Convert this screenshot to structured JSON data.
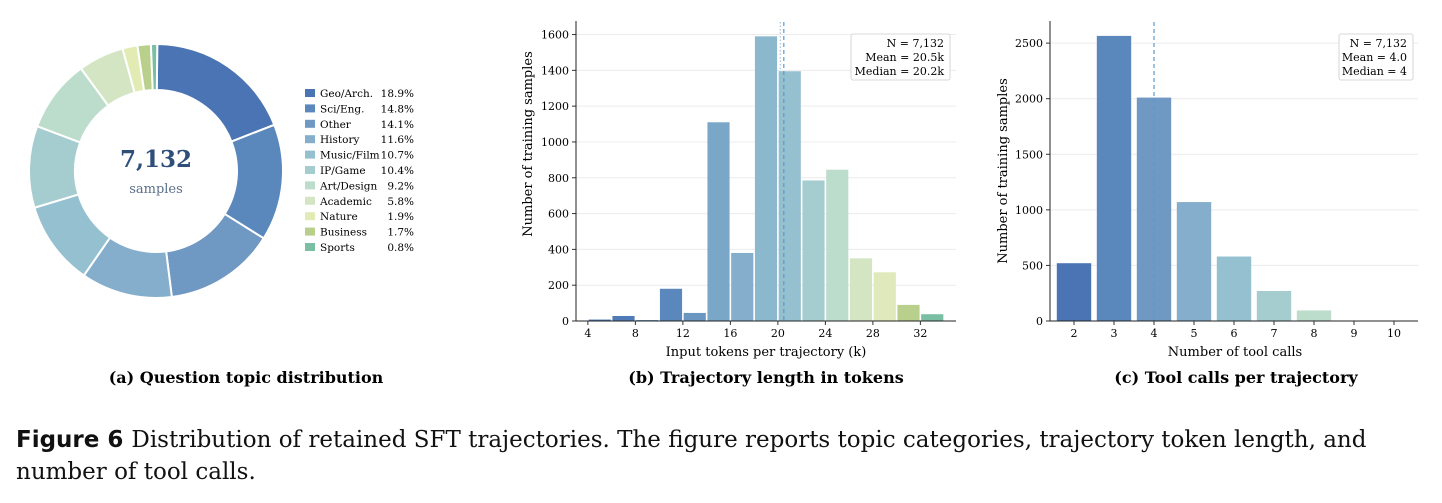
{
  "caption": {
    "label": "Figure 6",
    "text": "Distribution of retained SFT trajectories. The figure reports topic categories, trajectory token length, and number of tool calls."
  },
  "chart_data": [
    {
      "type": "pie",
      "subtitle": "(a) Question topic distribution",
      "center_value": "7,132",
      "center_label": "samples",
      "categories": [
        "Geo/Arch.",
        "Sci/Eng.",
        "Other",
        "History",
        "Music/Film",
        "IP/Game",
        "Art/Design",
        "Academic",
        "Nature",
        "Business",
        "Sports"
      ],
      "percent_labels": [
        "18.9%",
        "14.8%",
        "14.1%",
        "11.6%",
        "10.7%",
        "10.4%",
        "9.2%",
        "5.8%",
        "1.9%",
        "1.7%",
        "0.8%"
      ],
      "values": [
        18.9,
        14.8,
        14.1,
        11.6,
        10.7,
        10.4,
        9.2,
        5.8,
        1.9,
        1.7,
        0.8
      ],
      "colors": [
        "#4a74b4",
        "#5a88bd",
        "#6f98c3",
        "#84aecb",
        "#95c0cf",
        "#a5cdd0",
        "#bcdccc",
        "#d4e5c3",
        "#e3ebb5",
        "#b9d08c",
        "#7abfa4"
      ],
      "legend_position": "right"
    },
    {
      "type": "bar",
      "subtitle": "(b) Trajectory length in tokens",
      "xlabel": "Input tokens per trajectory (k)",
      "ylabel": "Number of training samples",
      "bin_starts": [
        4,
        6,
        8,
        10,
        12,
        14,
        16,
        18,
        20,
        22,
        24,
        26,
        28,
        30,
        32
      ],
      "bin_width": 2,
      "values": [
        8,
        28,
        5,
        180,
        45,
        1110,
        380,
        1590,
        1395,
        785,
        845,
        350,
        272,
        90,
        38
      ],
      "colors": [
        "#4a74b4",
        "#4f7cb8",
        "#5584bc",
        "#5a88bd",
        "#6a96c1",
        "#7aa6c8",
        "#84aecb",
        "#8cb8ce",
        "#95c0cf",
        "#a5cdd0",
        "#bcdccc",
        "#d4e5c3",
        "#dfe9bb",
        "#b9d08c",
        "#7abfa4"
      ],
      "xticks": [
        4,
        8,
        12,
        16,
        20,
        24,
        28,
        32
      ],
      "yticks": [
        0,
        200,
        400,
        600,
        800,
        1000,
        1200,
        1400,
        1600
      ],
      "xlim": [
        3,
        35
      ],
      "ylim": [
        0,
        1670
      ],
      "mean_line": 20.5,
      "median_line": 20.2,
      "stats": [
        "N = 7,132",
        "Mean = 20.5k",
        "Median = 20.2k"
      ],
      "stats_position": "top-right",
      "grid": "horizontal"
    },
    {
      "type": "bar",
      "subtitle": "(c) Tool calls per trajectory",
      "xlabel": "Number of tool calls",
      "ylabel": "Number of training samples",
      "categories": [
        2,
        3,
        4,
        5,
        6,
        7,
        8,
        9,
        10
      ],
      "values": [
        520,
        2565,
        2010,
        1070,
        580,
        270,
        95,
        3,
        2
      ],
      "colors": [
        "#4a74b4",
        "#5a88bd",
        "#6f98c3",
        "#84aecb",
        "#95c0cf",
        "#a5cdd0",
        "#bcdccc",
        "#d4e5c3",
        "#e3ebb5"
      ],
      "xlim": [
        1.4,
        10.6
      ],
      "yticks": [
        0,
        500,
        1000,
        1500,
        2000,
        2500
      ],
      "ylim": [
        0,
        2690
      ],
      "mean_line": 4.0,
      "median_line": 4,
      "stats": [
        "N = 7,132",
        "Mean = 4.0",
        "Median = 4"
      ],
      "stats_position": "top-right",
      "grid": "horizontal"
    }
  ]
}
